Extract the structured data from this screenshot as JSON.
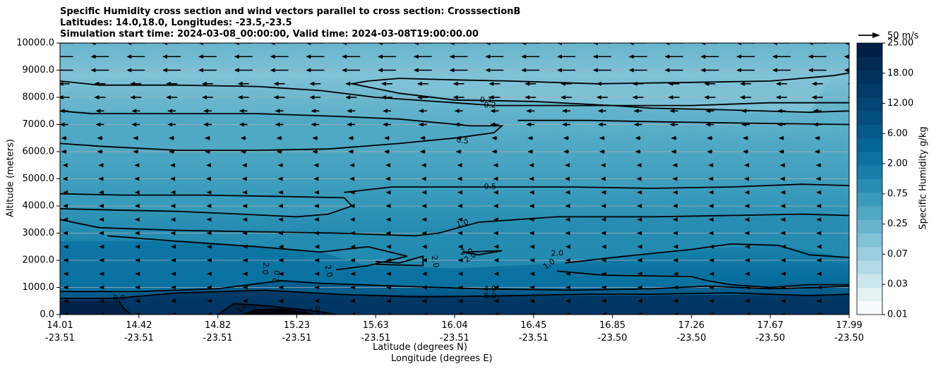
{
  "title_lines": [
    "Specific Humidity cross section and wind vectors parallel to cross section: CrosssectionB",
    "Latitudes: 14.0,18.0, Longitudes: -23.5,-23.5",
    "Simulation start time: 2024-03-08_00:00:00, Valid time: 2024-03-08T19:00:00.00"
  ],
  "chart_data": {
    "type": "contourf",
    "title": "Specific Humidity cross section and wind vectors parallel to cross section: CrosssectionB",
    "ylabel": "Altitude (meters)",
    "xlabel_lat": "Latitude (degrees N)",
    "xlabel_lon": "Longitude (degrees E)",
    "ylim": [
      0,
      10000
    ],
    "xlim": [
      0,
      10
    ],
    "yticks": [
      "0.0",
      "1000.0",
      "2000.0",
      "3000.0",
      "4000.0",
      "5000.0",
      "6000.0",
      "7000.0",
      "8000.0",
      "9000.0",
      "10000.0"
    ],
    "ytick_values": [
      0,
      1000,
      2000,
      3000,
      4000,
      5000,
      6000,
      7000,
      8000,
      9000,
      10000
    ],
    "xticks_lat": [
      "14.01",
      "14.42",
      "14.82",
      "15.23",
      "15.63",
      "16.04",
      "16.45",
      "16.85",
      "17.26",
      "17.67",
      "17.99"
    ],
    "xticks_lon": [
      "-23.51",
      "-23.51",
      "-23.51",
      "-23.51",
      "-23.51",
      "-23.51",
      "-23.51",
      "-23.50",
      "-23.50",
      "-23.50",
      "-23.50"
    ],
    "grid": "horizontal",
    "colorbar": {
      "label": "Specific Humidity g/kg",
      "ticks": [
        "0.01",
        "0.03",
        "0.07",
        "0.25",
        "0.75",
        "2.00",
        "6.00",
        "12.00",
        "18.00",
        "25.00"
      ],
      "levels": 20,
      "colors": [
        "#f7fbfd",
        "#e3f1f5",
        "#cbe6ee",
        "#b2dae6",
        "#99cede",
        "#80c2d6",
        "#67b5cd",
        "#4fa8c4",
        "#3a9bbb",
        "#278db2",
        "#1680aa",
        "#0a73a1",
        "#046696",
        "#035a8b",
        "#034f80",
        "#034574",
        "#023c69",
        "#02335e",
        "#022a52",
        "#011f45"
      ]
    },
    "quiver_key": "50 m/s",
    "contour_labels": [
      {
        "text": "0.1",
        "x": 5.4,
        "y": 7900,
        "rot": 0
      },
      {
        "text": "0.2",
        "x": 5.45,
        "y": 7700,
        "rot": 0
      },
      {
        "text": "0.5",
        "x": 5.1,
        "y": 6400,
        "rot": 8
      },
      {
        "text": "0.5",
        "x": 5.45,
        "y": 4700,
        "rot": 0
      },
      {
        "text": "1.0",
        "x": 5.1,
        "y": 3350,
        "rot": -15
      },
      {
        "text": "1.0",
        "x": 6.2,
        "y": 1850,
        "rot": -35
      },
      {
        "text": "2.0",
        "x": 6.3,
        "y": 2250,
        "rot": 0
      },
      {
        "text": "2.0",
        "x": 5.15,
        "y": 2300,
        "rot": -3
      },
      {
        "text": "2.0",
        "x": 5.2,
        "y": 2100,
        "rot": -35
      },
      {
        "text": "2.0",
        "x": 4.75,
        "y": 1950,
        "rot": 80
      },
      {
        "text": "2.0",
        "x": 3.4,
        "y": 1600,
        "rot": 80
      },
      {
        "text": "2.0",
        "x": 2.75,
        "y": 1400,
        "rot": -80
      },
      {
        "text": "2.0",
        "x": 2.6,
        "y": 1700,
        "rot": 95
      },
      {
        "text": "4.0",
        "x": 5.45,
        "y": 930,
        "rot": 0
      },
      {
        "text": "8.0",
        "x": 5.45,
        "y": 680,
        "rot": 0
      },
      {
        "text": "8.0",
        "x": 0.75,
        "y": 600,
        "rot": 0
      },
      {
        "text": "12",
        "x": 2.3,
        "y": 230,
        "rot": -50
      },
      {
        "text": "12.0",
        "x": 3.2,
        "y": 110,
        "rot": -25
      }
    ],
    "contour_lines": [
      {
        "level": "0.1",
        "points": [
          [
            3.7,
            8500
          ],
          [
            3.9,
            8600
          ],
          [
            4.3,
            8700
          ],
          [
            4.9,
            8650
          ],
          [
            5.7,
            8600
          ],
          [
            6.8,
            8500
          ],
          [
            8.0,
            8550
          ],
          [
            9.0,
            8600
          ],
          [
            9.8,
            8800
          ],
          [
            10,
            8900
          ]
        ]
      },
      {
        "level": "0.1",
        "points": [
          [
            3.7,
            8500
          ],
          [
            4.3,
            8150
          ],
          [
            5.0,
            7900
          ],
          [
            6.0,
            7850
          ],
          [
            7.0,
            7700
          ],
          [
            7.5,
            7600
          ],
          [
            8.3,
            7550
          ],
          [
            9.5,
            7450
          ],
          [
            10,
            7500
          ]
        ]
      },
      {
        "level": "0.2",
        "points": [
          [
            0,
            8600
          ],
          [
            0.5,
            8450
          ],
          [
            1.5,
            8450
          ],
          [
            2.5,
            8400
          ],
          [
            3.3,
            8250
          ],
          [
            4.0,
            8000
          ],
          [
            5.0,
            7800
          ],
          [
            5.5,
            7700
          ],
          [
            6.3,
            7700
          ],
          [
            8.0,
            7700
          ],
          [
            9.0,
            7800
          ],
          [
            10,
            7800
          ]
        ]
      },
      {
        "level": "0.5",
        "points": [
          [
            0,
            7500
          ],
          [
            0.4,
            7400
          ],
          [
            1.5,
            7400
          ],
          [
            2.5,
            7400
          ],
          [
            3.5,
            7300
          ],
          [
            4.3,
            7200
          ],
          [
            5.2,
            6950
          ],
          [
            5.6,
            6950
          ],
          [
            5.5,
            6700
          ],
          [
            5.0,
            6500
          ],
          [
            4.3,
            6300
          ],
          [
            3.4,
            6100
          ],
          [
            2.5,
            6050
          ],
          [
            1.5,
            6050
          ],
          [
            0.5,
            6200
          ],
          [
            0,
            6300
          ]
        ]
      },
      {
        "level": "0.5",
        "points": [
          [
            5.8,
            7150
          ],
          [
            6.7,
            7150
          ],
          [
            7.6,
            7100
          ],
          [
            8.7,
            7050
          ],
          [
            10,
            7000
          ]
        ]
      },
      {
        "level": "0.5",
        "points": [
          [
            0,
            4450
          ],
          [
            0.8,
            4400
          ],
          [
            1.8,
            4400
          ],
          [
            2.8,
            4350
          ],
          [
            3.6,
            4300
          ],
          [
            3.7,
            4000
          ],
          [
            3.4,
            3700
          ],
          [
            3.0,
            3600
          ],
          [
            2.3,
            3700
          ],
          [
            1.5,
            3800
          ],
          [
            0.7,
            3850
          ],
          [
            0,
            3900
          ]
        ]
      },
      {
        "level": "0.5",
        "points": [
          [
            3.6,
            4500
          ],
          [
            4.2,
            4700
          ],
          [
            5.2,
            4700
          ],
          [
            6.5,
            4700
          ],
          [
            7.5,
            4650
          ],
          [
            8.5,
            4700
          ],
          [
            9.4,
            4800
          ],
          [
            10,
            4750
          ]
        ]
      },
      {
        "level": "1.0",
        "points": [
          [
            0,
            3500
          ],
          [
            0.5,
            3200
          ],
          [
            1.5,
            3100
          ],
          [
            2.5,
            3050
          ],
          [
            3.5,
            3000
          ],
          [
            4.5,
            2900
          ],
          [
            4.8,
            3000
          ],
          [
            5.3,
            3400
          ],
          [
            6.3,
            3600
          ],
          [
            7.5,
            3600
          ],
          [
            8.5,
            3650
          ],
          [
            9.4,
            3700
          ],
          [
            10,
            3650
          ]
        ]
      },
      {
        "level": "1.0",
        "points": [
          [
            6.4,
            1900
          ],
          [
            7.0,
            2100
          ],
          [
            8.0,
            2400
          ],
          [
            8.5,
            2600
          ],
          [
            9.1,
            2550
          ],
          [
            9.5,
            2200
          ],
          [
            10,
            2100
          ]
        ]
      },
      {
        "level": "2.0",
        "points": [
          [
            0.6,
            2900
          ],
          [
            1.5,
            2700
          ],
          [
            2.5,
            2500
          ],
          [
            3.3,
            2300
          ],
          [
            3.9,
            2500
          ],
          [
            4.4,
            2150
          ],
          [
            3.9,
            1800
          ],
          [
            3.5,
            1650
          ]
        ]
      },
      {
        "level": "2.0",
        "points": [
          [
            4.0,
            1950
          ],
          [
            4.3,
            1900
          ],
          [
            4.6,
            2150
          ],
          [
            4.6,
            1800
          ],
          [
            4.0,
            1850
          ]
        ]
      },
      {
        "level": "2.0",
        "points": [
          [
            5.1,
            2300
          ],
          [
            5.6,
            2350
          ],
          [
            5.3,
            2200
          ],
          [
            5.1,
            2300
          ]
        ]
      },
      {
        "level": "2.0",
        "points": [
          [
            6.3,
            1600
          ],
          [
            6.9,
            1450
          ],
          [
            8.0,
            1400
          ],
          [
            8.2,
            1250
          ],
          [
            8.5,
            1100
          ],
          [
            9.0,
            1000
          ],
          [
            9.5,
            1100
          ],
          [
            10,
            1100
          ]
        ]
      },
      {
        "level": "4.0",
        "points": [
          [
            0,
            850
          ],
          [
            1.0,
            850
          ],
          [
            2.0,
            950
          ],
          [
            2.8,
            1250
          ],
          [
            3.3,
            1150
          ],
          [
            4.3,
            1050
          ],
          [
            5.3,
            950
          ],
          [
            6.5,
            900
          ],
          [
            7.5,
            950
          ],
          [
            8.2,
            1050
          ],
          [
            9.0,
            950
          ],
          [
            9.6,
            1000
          ],
          [
            10,
            1050
          ]
        ]
      },
      {
        "level": "8.0",
        "points": [
          [
            0,
            600
          ],
          [
            0.7,
            600
          ],
          [
            1.5,
            800
          ],
          [
            2.6,
            900
          ],
          [
            3.5,
            750
          ],
          [
            4.5,
            650
          ],
          [
            5.4,
            680
          ],
          [
            6.7,
            750
          ],
          [
            7.5,
            750
          ],
          [
            8.5,
            800
          ],
          [
            9.5,
            700
          ],
          [
            10,
            750
          ]
        ]
      },
      {
        "level": "12",
        "points": [
          [
            0.75,
            500
          ],
          [
            0.8,
            250
          ],
          [
            0.9,
            0
          ]
        ]
      },
      {
        "level": "12",
        "points": [
          [
            2.0,
            0
          ],
          [
            2.2,
            400
          ],
          [
            2.5,
            350
          ],
          [
            2.7,
            300
          ],
          [
            3.0,
            200
          ],
          [
            3.3,
            100
          ],
          [
            3.5,
            0
          ]
        ]
      },
      {
        "level": "18",
        "points": [
          [
            2.3,
            0
          ],
          [
            2.5,
            180
          ],
          [
            2.8,
            200
          ],
          [
            3.1,
            80
          ],
          [
            3.2,
            0
          ]
        ]
      }
    ]
  }
}
